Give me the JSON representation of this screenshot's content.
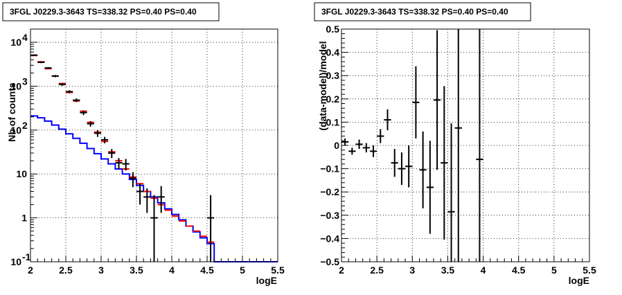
{
  "chart_data": [
    {
      "type": "line",
      "title": "3FGL J0229.3-3643 TS=338.32 PS=0.40 PS=0.40",
      "xlabel": "logE",
      "ylabel": "Nb of counts",
      "xlim": [
        2,
        5.5
      ],
      "ylim": [
        0.1,
        20000
      ],
      "yscale": "log",
      "grid": true,
      "x_ticks": [
        "2",
        "2.5",
        "3",
        "3.5",
        "4",
        "4.5",
        "5",
        "5.5"
      ],
      "y_ticks": [
        "10^-1",
        "1",
        "10",
        "10^2",
        "10^3",
        "10^4"
      ],
      "colors": {
        "data": "#000000",
        "model_total": "#ff0000",
        "model_source": "#0000ff"
      },
      "series": [
        {
          "kind": "step",
          "color": "#0000ff",
          "edges": [
            2.0,
            2.1,
            2.2,
            2.3,
            2.4,
            2.5,
            2.6,
            2.7,
            2.8,
            2.9,
            3.0,
            3.1,
            3.2,
            3.3,
            3.4,
            3.5,
            3.6,
            3.7,
            3.8,
            3.9,
            4.0,
            4.1,
            4.2,
            4.3,
            4.4,
            4.5,
            4.6,
            4.7,
            4.8,
            4.9,
            5.0,
            5.1,
            5.2,
            5.3,
            5.4,
            5.5
          ],
          "values": [
            210,
            190,
            160,
            130,
            105,
            82,
            65,
            50,
            38,
            29,
            22,
            17,
            13,
            10,
            7.5,
            5.5,
            4.0,
            3.0,
            2.2,
            1.6,
            1.2,
            0.9,
            0.65,
            0.48,
            0.35,
            0.26,
            0.1,
            0.1,
            0.1,
            0.1,
            0.1,
            0.1,
            0.1,
            0.1,
            0.1
          ]
        },
        {
          "kind": "points",
          "color": "#ff0000",
          "x": [
            2.05,
            2.15,
            2.25,
            2.35,
            2.45,
            2.55,
            2.65,
            2.75,
            2.85,
            2.95,
            3.05,
            3.15,
            3.25,
            3.35,
            3.45,
            3.55,
            3.65,
            3.75,
            3.85,
            3.95,
            4.05,
            4.15,
            4.25,
            4.35,
            4.45,
            4.55
          ],
          "y": [
            5000,
            3600,
            2500,
            1700,
            1150,
            720,
            460,
            270,
            150,
            90,
            55,
            32,
            20,
            13,
            8.5,
            6.0,
            4.0,
            2.8,
            2.0,
            1.5,
            1.1,
            0.85,
            0.65,
            0.5,
            0.38,
            0.28
          ],
          "err_low": [
            0,
            0,
            0,
            0,
            0,
            0,
            0,
            0,
            0,
            0,
            0,
            0,
            0,
            0,
            0,
            0,
            0,
            0,
            0,
            0,
            0,
            0,
            0,
            0,
            0,
            0
          ],
          "err_high": [
            0,
            0,
            0,
            0,
            0,
            0,
            0,
            0,
            0,
            0,
            0,
            0,
            0,
            0,
            0,
            0,
            0,
            0,
            0,
            0,
            0,
            0,
            0,
            0,
            0,
            0
          ]
        },
        {
          "kind": "points",
          "color": "#000000",
          "x": [
            2.05,
            2.15,
            2.25,
            2.35,
            2.45,
            2.55,
            2.65,
            2.75,
            2.85,
            2.95,
            3.05,
            3.15,
            3.25,
            3.35,
            3.45,
            3.55,
            3.65,
            3.75,
            3.85,
            4.55
          ],
          "y": [
            5100,
            3500,
            2600,
            1700,
            1100,
            750,
            480,
            250,
            140,
            85,
            60,
            30,
            18,
            17,
            8,
            4,
            3,
            1,
            3,
            1
          ],
          "err_low": [
            200,
            150,
            130,
            100,
            80,
            60,
            45,
            30,
            20,
            15,
            10,
            7,
            5,
            5,
            3,
            2,
            1.7,
            0.9,
            1.7,
            0.9
          ],
          "err_high": [
            200,
            150,
            130,
            100,
            80,
            60,
            45,
            30,
            20,
            15,
            10,
            7,
            5,
            5,
            3,
            2,
            1.7,
            2.3,
            2.3,
            2.3
          ]
        }
      ]
    },
    {
      "type": "scatter",
      "title": "3FGL J0229.3-3643 TS=338.32 PS=0.40 PS=0.40",
      "xlabel": "logE",
      "ylabel": "(data-model)/model",
      "xlim": [
        2,
        5.5
      ],
      "ylim": [
        -0.5,
        0.5
      ],
      "grid": true,
      "x_ticks": [
        "2",
        "2.5",
        "3",
        "3.5",
        "4",
        "4.5",
        "5",
        "5.5"
      ],
      "y_ticks": [
        "−0.5",
        "−0.4",
        "−0.3",
        "−0.2",
        "−0.1",
        "0",
        "0.1",
        "0.2",
        "0.3",
        "0.4",
        "0.5"
      ],
      "series": [
        {
          "color": "#000000",
          "x": [
            2.05,
            2.15,
            2.25,
            2.35,
            2.45,
            2.55,
            2.65,
            2.75,
            2.85,
            2.95,
            3.05,
            3.15,
            3.25,
            3.35,
            3.45,
            3.55,
            3.65,
            3.95
          ],
          "y": [
            0.015,
            -0.025,
            0.005,
            -0.01,
            -0.025,
            0.04,
            0.11,
            -0.075,
            -0.1,
            -0.09,
            0.185,
            -0.105,
            -0.18,
            0.195,
            -0.075,
            -0.285,
            0.075,
            -0.06
          ],
          "err": [
            0.015,
            0.015,
            0.02,
            0.02,
            0.025,
            0.03,
            0.045,
            0.06,
            0.07,
            0.09,
            0.155,
            0.165,
            0.2,
            0.3,
            0.33,
            0.38,
            0.6,
            0.6
          ]
        }
      ]
    }
  ]
}
